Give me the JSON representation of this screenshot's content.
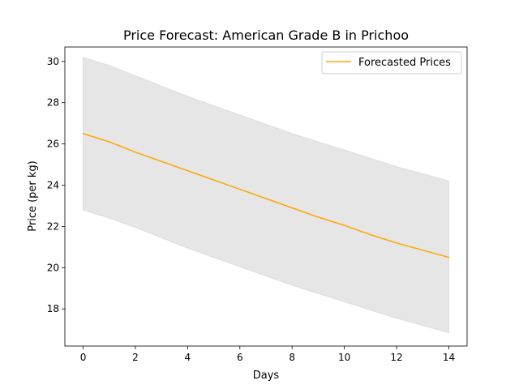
{
  "chart_data": {
    "type": "line",
    "title": "Price Forecast: American Grade B in Prichoo",
    "xlabel": "Days",
    "ylabel": "Price (per kg)",
    "xlim": [
      -0.7,
      14.7
    ],
    "ylim": [
      16.2,
      30.7
    ],
    "xticks": [
      0,
      2,
      4,
      6,
      8,
      10,
      12,
      14
    ],
    "yticks": [
      18,
      20,
      22,
      24,
      26,
      28,
      30
    ],
    "grid": false,
    "legend_position": "top-right",
    "series": [
      {
        "name": "Forecasted Prices",
        "color": "#ffa500",
        "x": [
          0,
          1,
          2,
          3,
          4,
          5,
          6,
          7,
          8,
          9,
          10,
          11,
          12,
          13,
          14
        ],
        "values": [
          26.5,
          26.1,
          25.6,
          25.15,
          24.7,
          24.25,
          23.8,
          23.35,
          22.9,
          22.45,
          22.05,
          21.6,
          21.2,
          20.85,
          20.5
        ]
      }
    ],
    "confidence_band": {
      "color": "#e6e6e6",
      "x": [
        0,
        1,
        2,
        3,
        4,
        5,
        6,
        7,
        8,
        9,
        10,
        11,
        12,
        13,
        14
      ],
      "upper": [
        30.2,
        29.8,
        29.3,
        28.8,
        28.3,
        27.85,
        27.4,
        26.95,
        26.5,
        26.1,
        25.7,
        25.3,
        24.9,
        24.55,
        24.2
      ],
      "lower": [
        22.8,
        22.4,
        21.95,
        21.45,
        20.95,
        20.5,
        20.05,
        19.6,
        19.15,
        18.75,
        18.35,
        17.95,
        17.55,
        17.2,
        16.85
      ]
    }
  }
}
